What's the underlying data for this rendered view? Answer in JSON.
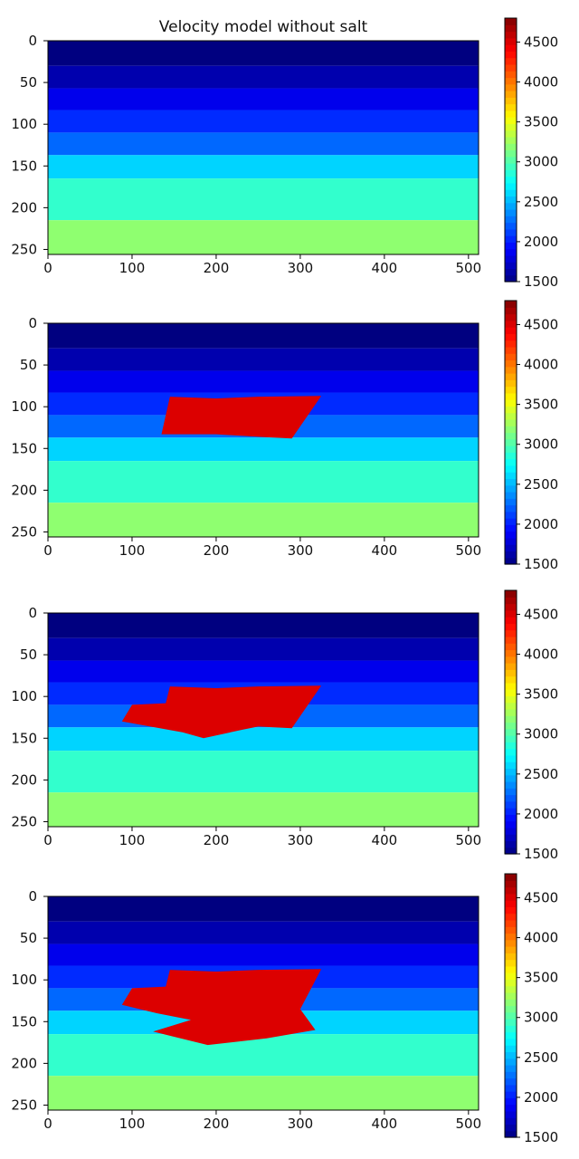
{
  "chart_data": [
    {
      "type": "heatmap",
      "title": "Velocity model without salt",
      "xlabel": "",
      "ylabel": "",
      "xlim": [
        0,
        512
      ],
      "ylim": [
        256,
        0
      ],
      "x_ticks": [
        0,
        100,
        200,
        300,
        400,
        500
      ],
      "y_ticks": [
        0,
        50,
        100,
        150,
        200,
        250
      ],
      "layers": [
        {
          "top": 0,
          "bottom": 30,
          "velocity": 1500
        },
        {
          "top": 30,
          "bottom": 57,
          "velocity": 1650
        },
        {
          "top": 57,
          "bottom": 83,
          "velocity": 1850
        },
        {
          "top": 83,
          "bottom": 110,
          "velocity": 2050
        },
        {
          "top": 110,
          "bottom": 137,
          "velocity": 2250
        },
        {
          "top": 137,
          "bottom": 165,
          "velocity": 2600
        },
        {
          "top": 165,
          "bottom": 215,
          "velocity": 2900
        },
        {
          "top": 215,
          "bottom": 256,
          "velocity": 3200
        }
      ],
      "salt_velocity": 4500,
      "salt_body": [],
      "colorbar": {
        "min": 1500,
        "max": 4800,
        "ticks": [
          1500,
          2000,
          2500,
          3000,
          3500,
          4000,
          4500
        ],
        "colormap": "jet"
      }
    },
    {
      "type": "heatmap",
      "title": "",
      "xlim": [
        0,
        512
      ],
      "ylim": [
        256,
        0
      ],
      "x_ticks": [
        0,
        100,
        200,
        300,
        400,
        500
      ],
      "y_ticks": [
        0,
        50,
        100,
        150,
        200,
        250
      ],
      "layers": [
        {
          "top": 0,
          "bottom": 30,
          "velocity": 1500
        },
        {
          "top": 30,
          "bottom": 57,
          "velocity": 1650
        },
        {
          "top": 57,
          "bottom": 83,
          "velocity": 1850
        },
        {
          "top": 83,
          "bottom": 110,
          "velocity": 2050
        },
        {
          "top": 110,
          "bottom": 137,
          "velocity": 2250
        },
        {
          "top": 137,
          "bottom": 165,
          "velocity": 2600
        },
        {
          "top": 165,
          "bottom": 215,
          "velocity": 2900
        },
        {
          "top": 215,
          "bottom": 256,
          "velocity": 3200
        }
      ],
      "salt_velocity": 4500,
      "salt_body": [
        [
          145,
          88
        ],
        [
          200,
          90
        ],
        [
          250,
          88
        ],
        [
          325,
          87
        ],
        [
          290,
          138
        ],
        [
          250,
          136
        ],
        [
          200,
          133
        ],
        [
          135,
          133
        ]
      ],
      "colorbar": {
        "min": 1500,
        "max": 4800,
        "ticks": [
          1500,
          2000,
          2500,
          3000,
          3500,
          4000,
          4500
        ],
        "colormap": "jet"
      }
    },
    {
      "type": "heatmap",
      "title": "",
      "xlim": [
        0,
        512
      ],
      "ylim": [
        256,
        0
      ],
      "x_ticks": [
        0,
        100,
        200,
        300,
        400,
        500
      ],
      "y_ticks": [
        0,
        50,
        100,
        150,
        200,
        250
      ],
      "layers": [
        {
          "top": 0,
          "bottom": 30,
          "velocity": 1500
        },
        {
          "top": 30,
          "bottom": 57,
          "velocity": 1650
        },
        {
          "top": 57,
          "bottom": 83,
          "velocity": 1850
        },
        {
          "top": 83,
          "bottom": 110,
          "velocity": 2050
        },
        {
          "top": 110,
          "bottom": 137,
          "velocity": 2250
        },
        {
          "top": 137,
          "bottom": 165,
          "velocity": 2600
        },
        {
          "top": 165,
          "bottom": 215,
          "velocity": 2900
        },
        {
          "top": 215,
          "bottom": 256,
          "velocity": 3200
        }
      ],
      "salt_velocity": 4500,
      "salt_body": [
        [
          145,
          88
        ],
        [
          200,
          90
        ],
        [
          250,
          88
        ],
        [
          325,
          87
        ],
        [
          290,
          138
        ],
        [
          250,
          136
        ],
        [
          230,
          140
        ],
        [
          185,
          150
        ],
        [
          160,
          143
        ],
        [
          88,
          130
        ],
        [
          100,
          110
        ],
        [
          140,
          108
        ]
      ],
      "colorbar": {
        "min": 1500,
        "max": 4800,
        "ticks": [
          1500,
          2000,
          2500,
          3000,
          3500,
          4000,
          4500
        ],
        "colormap": "jet"
      }
    },
    {
      "type": "heatmap",
      "title": "",
      "xlim": [
        0,
        512
      ],
      "ylim": [
        256,
        0
      ],
      "x_ticks": [
        0,
        100,
        200,
        300,
        400,
        500
      ],
      "y_ticks": [
        0,
        50,
        100,
        150,
        200,
        250
      ],
      "layers": [
        {
          "top": 0,
          "bottom": 30,
          "velocity": 1500
        },
        {
          "top": 30,
          "bottom": 57,
          "velocity": 1650
        },
        {
          "top": 57,
          "bottom": 83,
          "velocity": 1850
        },
        {
          "top": 83,
          "bottom": 110,
          "velocity": 2050
        },
        {
          "top": 110,
          "bottom": 137,
          "velocity": 2250
        },
        {
          "top": 137,
          "bottom": 165,
          "velocity": 2600
        },
        {
          "top": 165,
          "bottom": 215,
          "velocity": 2900
        },
        {
          "top": 215,
          "bottom": 256,
          "velocity": 3200
        }
      ],
      "salt_velocity": 4500,
      "salt_body": [
        [
          145,
          88
        ],
        [
          200,
          90
        ],
        [
          250,
          88
        ],
        [
          325,
          87
        ],
        [
          300,
          135
        ],
        [
          318,
          160
        ],
        [
          260,
          170
        ],
        [
          190,
          178
        ],
        [
          125,
          162
        ],
        [
          170,
          148
        ],
        [
          130,
          140
        ],
        [
          88,
          130
        ],
        [
          100,
          110
        ],
        [
          140,
          108
        ]
      ],
      "colorbar": {
        "min": 1500,
        "max": 4800,
        "ticks": [
          1500,
          2000,
          2500,
          3000,
          3500,
          4000,
          4500
        ],
        "colormap": "jet"
      }
    }
  ]
}
